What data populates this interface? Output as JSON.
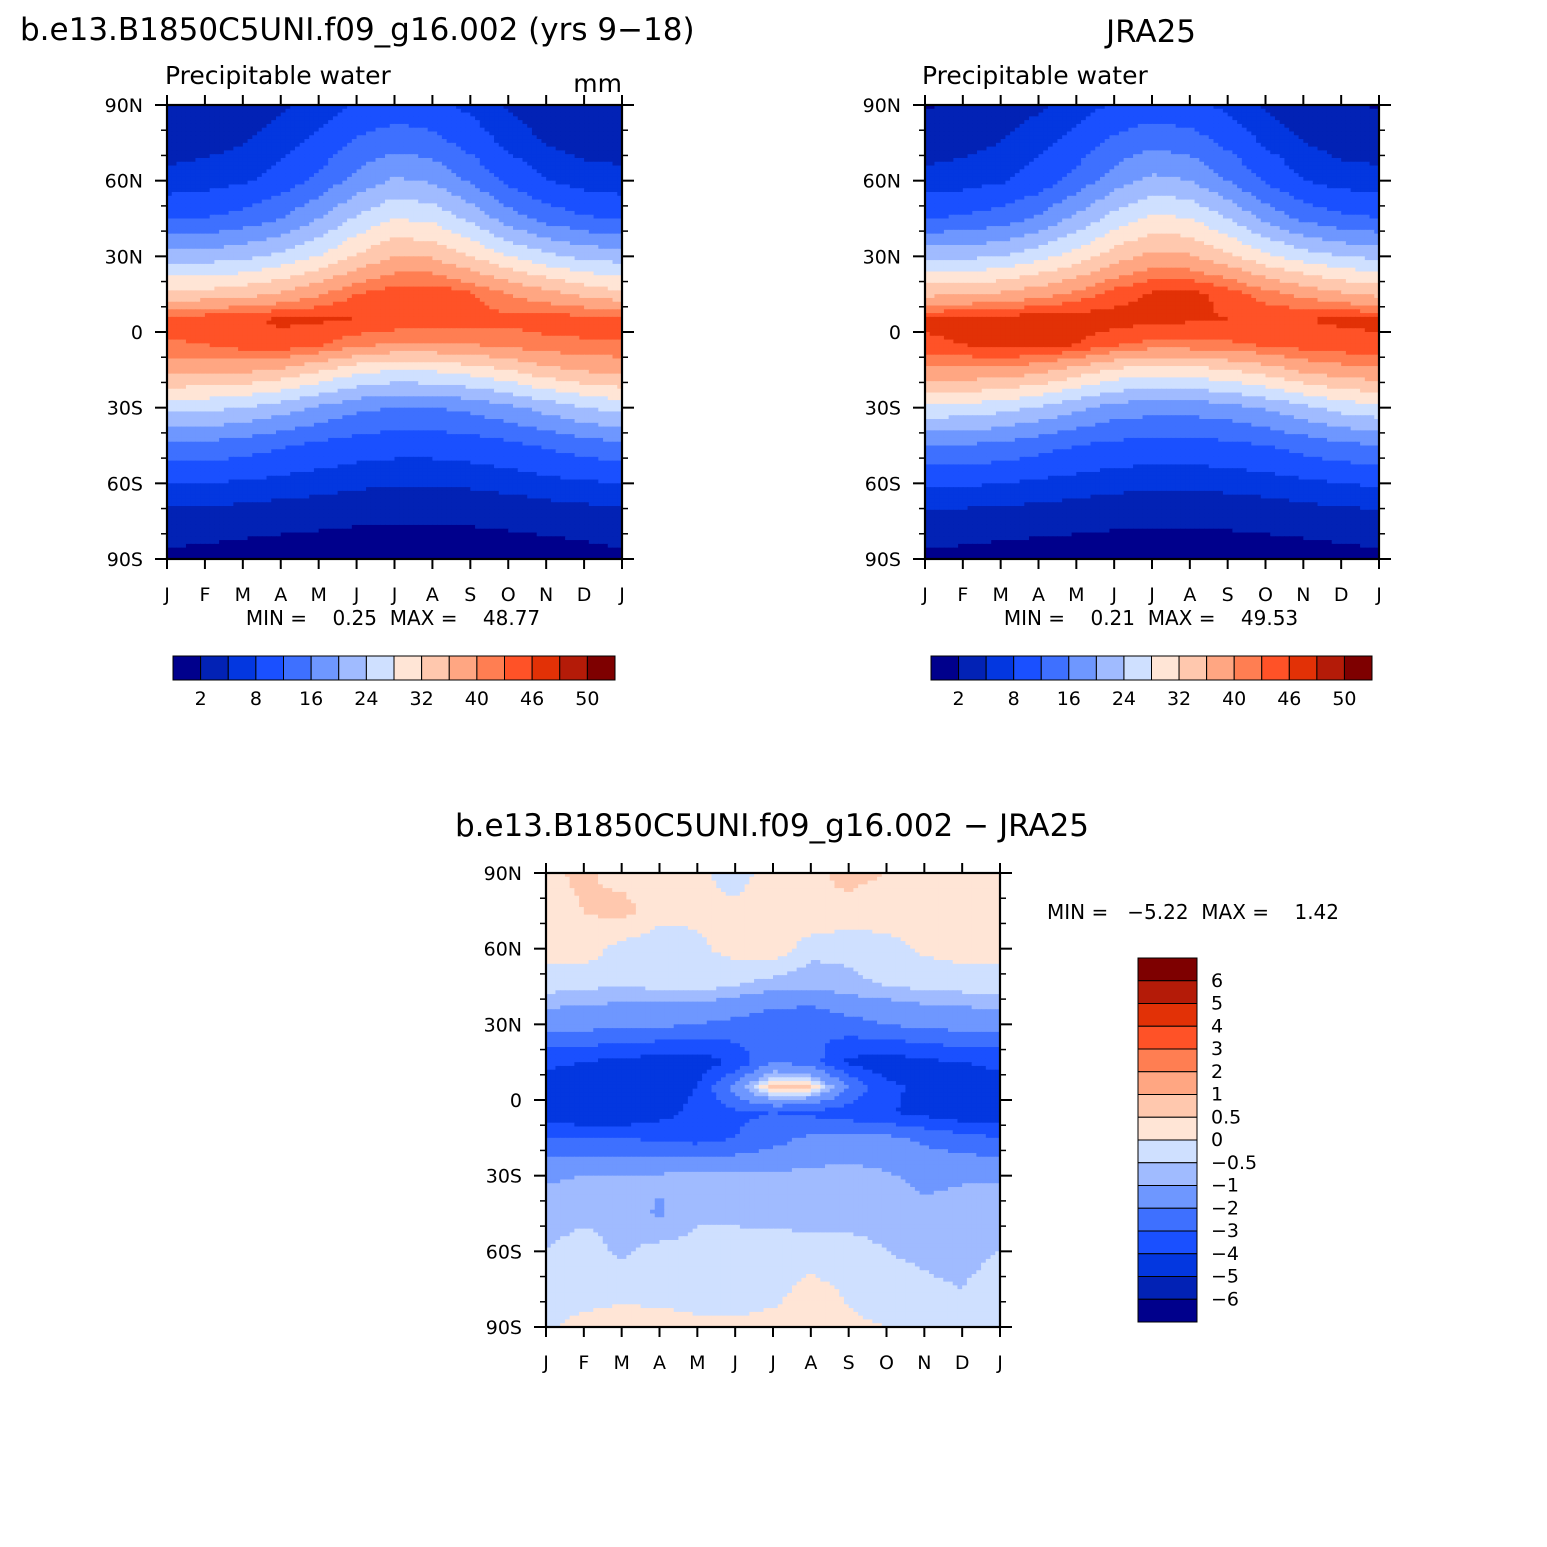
{
  "figure": {
    "panels": [
      {
        "id": "model",
        "title": "b.e13.B1850C5UNI.f09_g16.002 (yrs 9−18)",
        "left_string": "Precipitable water",
        "right_string": "mm",
        "stats": "MIN =    0.25  MAX =    48.77"
      },
      {
        "id": "obs",
        "title": "JRA25",
        "left_string": "Precipitable water",
        "right_string": "",
        "stats": "MIN =    0.21  MAX =    49.53"
      },
      {
        "id": "diff",
        "title": "b.e13.B1850C5UNI.f09_g16.002 − JRA25",
        "left_string": "",
        "right_string": "",
        "stats": "MIN =   −5.22  MAX =    1.42"
      }
    ]
  },
  "chart_data": [
    {
      "type": "heatmap",
      "title": "b.e13.B1850C5UNI.f09_g16.002 (yrs 9−18)",
      "xlabel": "",
      "ylabel": "",
      "units": "mm",
      "x_tick_labels": [
        "J",
        "F",
        "M",
        "A",
        "M",
        "J",
        "J",
        "A",
        "S",
        "O",
        "N",
        "D",
        "J"
      ],
      "y_tick_labels": [
        "90S",
        "60S",
        "30S",
        "0",
        "30N",
        "60N",
        "90N"
      ],
      "ylim": [
        -90,
        90
      ],
      "levels": [
        2,
        5,
        8,
        12,
        16,
        20,
        24,
        28,
        32,
        36,
        40,
        43,
        46,
        48,
        50
      ],
      "colorbar_labels": [
        "2",
        "8",
        "16",
        "24",
        "32",
        "40",
        "46",
        "50"
      ],
      "colors": [
        "#00008C",
        "#0222B5",
        "#0337E0",
        "#1A50FF",
        "#3E70FF",
        "#6E97FF",
        "#A0BBFF",
        "#CFE0FF",
        "#FFE5D6",
        "#FFC8AE",
        "#FFA682",
        "#FF7E52",
        "#FF5227",
        "#E23106",
        "#B41B08",
        "#7E0000"
      ],
      "grid_lat": [
        90,
        75,
        60,
        45,
        30,
        15,
        5,
        -5,
        -15,
        -30,
        -45,
        -60,
        -75,
        -90
      ],
      "values": [
        [
          2.0,
          2.2,
          3.0,
          4.5,
          6.0,
          8.5,
          9.5,
          9.0,
          7.0,
          4.5,
          3.0,
          2.3,
          2.0
        ],
        [
          3.5,
          4.0,
          4.8,
          6.5,
          9.0,
          12.5,
          14.5,
          13.5,
          10.5,
          7.0,
          4.8,
          3.8,
          3.5
        ],
        [
          6.0,
          6.5,
          7.5,
          9.5,
          13.0,
          17.5,
          20.5,
          19.5,
          15.5,
          11.0,
          8.0,
          6.5,
          6.0
        ],
        [
          11.5,
          12.0,
          13.5,
          16.0,
          20.0,
          24.5,
          28.0,
          27.0,
          23.0,
          18.0,
          14.5,
          12.5,
          11.5
        ],
        [
          22.0,
          22.0,
          23.0,
          25.0,
          28.0,
          32.5,
          36.0,
          35.5,
          32.0,
          28.0,
          25.0,
          23.0,
          22.0
        ],
        [
          33.0,
          33.5,
          34.5,
          36.5,
          39.5,
          43.0,
          45.0,
          45.5,
          43.5,
          40.0,
          37.5,
          35.0,
          33.0
        ],
        [
          44.5,
          45.0,
          45.5,
          46.5,
          46.5,
          46.0,
          45.5,
          45.0,
          44.5,
          44.0,
          44.5,
          44.5,
          44.5
        ],
        [
          42.5,
          43.0,
          44.5,
          45.0,
          43.5,
          41.0,
          39.5,
          39.5,
          40.0,
          41.0,
          42.0,
          42.5,
          42.5
        ],
        [
          37.5,
          37.5,
          37.0,
          35.5,
          32.5,
          29.5,
          28.0,
          28.5,
          30.0,
          32.0,
          35.0,
          36.5,
          37.5
        ],
        [
          25.5,
          25.0,
          24.0,
          22.0,
          19.5,
          17.0,
          16.0,
          16.0,
          17.0,
          19.0,
          21.5,
          24.0,
          25.5
        ],
        [
          15.0,
          14.8,
          14.0,
          12.5,
          11.0,
          10.0,
          9.5,
          9.5,
          10.0,
          11.0,
          12.5,
          14.0,
          15.0
        ],
        [
          8.0,
          8.0,
          7.5,
          6.8,
          6.2,
          5.6,
          5.2,
          5.2,
          5.5,
          6.0,
          6.8,
          7.5,
          8.0
        ],
        [
          3.2,
          3.0,
          2.8,
          2.6,
          2.4,
          2.2,
          2.1,
          2.1,
          2.2,
          2.4,
          2.6,
          2.9,
          3.2
        ],
        [
          1.5,
          1.3,
          1.1,
          0.9,
          0.8,
          0.7,
          0.6,
          0.6,
          0.7,
          0.8,
          1.0,
          1.2,
          1.5
        ]
      ],
      "min": 0.25,
      "max": 48.77
    },
    {
      "type": "heatmap",
      "title": "JRA25",
      "xlabel": "",
      "ylabel": "",
      "units": "mm",
      "x_tick_labels": [
        "J",
        "F",
        "M",
        "A",
        "M",
        "J",
        "J",
        "A",
        "S",
        "O",
        "N",
        "D",
        "J"
      ],
      "y_tick_labels": [
        "90S",
        "60S",
        "30S",
        "0",
        "30N",
        "60N",
        "90N"
      ],
      "ylim": [
        -90,
        90
      ],
      "levels": [
        2,
        5,
        8,
        12,
        16,
        20,
        24,
        28,
        32,
        36,
        40,
        43,
        46,
        48,
        50
      ],
      "colorbar_labels": [
        "2",
        "8",
        "16",
        "24",
        "32",
        "40",
        "46",
        "50"
      ],
      "colors": [
        "#00008C",
        "#0222B5",
        "#0337E0",
        "#1A50FF",
        "#3E70FF",
        "#6E97FF",
        "#A0BBFF",
        "#CFE0FF",
        "#FFE5D6",
        "#FFC8AE",
        "#FFA682",
        "#FF7E52",
        "#FF5227",
        "#E23106",
        "#B41B08",
        "#7E0000"
      ],
      "grid_lat": [
        90,
        75,
        60,
        45,
        30,
        15,
        5,
        -5,
        -15,
        -30,
        -45,
        -60,
        -75,
        -90
      ],
      "values": [
        [
          1.8,
          2.2,
          3.0,
          4.5,
          6.2,
          8.5,
          9.5,
          9.0,
          7.0,
          4.5,
          3.0,
          2.3,
          1.8
        ],
        [
          3.5,
          4.0,
          5.0,
          6.8,
          9.5,
          13.0,
          15.0,
          14.0,
          11.0,
          7.5,
          5.0,
          3.8,
          3.5
        ],
        [
          6.0,
          6.5,
          7.5,
          9.8,
          13.5,
          18.0,
          21.0,
          20.0,
          16.0,
          11.5,
          8.0,
          6.5,
          6.0
        ],
        [
          12.0,
          12.5,
          14.0,
          16.5,
          21.0,
          25.5,
          29.0,
          28.0,
          24.0,
          19.0,
          15.0,
          13.0,
          12.0
        ],
        [
          23.0,
          23.0,
          24.0,
          26.5,
          29.5,
          34.0,
          37.0,
          36.5,
          33.0,
          29.0,
          26.0,
          24.0,
          23.0
        ],
        [
          35.0,
          35.5,
          36.5,
          38.5,
          41.0,
          44.5,
          46.5,
          47.0,
          45.0,
          41.5,
          39.0,
          36.5,
          35.0
        ],
        [
          46.5,
          47.0,
          47.5,
          48.0,
          48.0,
          47.5,
          47.0,
          46.5,
          46.0,
          45.5,
          46.0,
          46.5,
          46.5
        ],
        [
          45.5,
          46.0,
          47.0,
          47.5,
          46.0,
          43.5,
          42.0,
          42.0,
          42.5,
          43.5,
          44.5,
          45.0,
          45.5
        ],
        [
          39.5,
          39.5,
          39.0,
          37.5,
          34.5,
          31.5,
          30.0,
          30.5,
          32.0,
          34.0,
          37.0,
          38.5,
          39.5
        ],
        [
          27.0,
          26.5,
          25.5,
          23.5,
          21.0,
          18.5,
          17.5,
          17.5,
          18.5,
          20.5,
          23.0,
          25.5,
          27.0
        ],
        [
          16.0,
          15.8,
          15.0,
          13.5,
          12.0,
          11.0,
          10.5,
          10.5,
          11.0,
          12.0,
          13.5,
          15.0,
          16.0
        ],
        [
          8.5,
          8.5,
          8.0,
          7.3,
          6.6,
          6.0,
          5.6,
          5.6,
          5.9,
          6.4,
          7.2,
          8.0,
          8.5
        ],
        [
          3.4,
          3.2,
          3.0,
          2.8,
          2.6,
          2.4,
          2.3,
          2.3,
          2.4,
          2.6,
          2.8,
          3.1,
          3.4
        ],
        [
          1.5,
          1.3,
          1.1,
          0.9,
          0.8,
          0.7,
          0.6,
          0.6,
          0.7,
          0.8,
          1.0,
          1.2,
          1.5
        ]
      ],
      "min": 0.21,
      "max": 49.53
    },
    {
      "type": "heatmap",
      "title": "b.e13.B1850C5UNI.f09_g16.002 − JRA25",
      "xlabel": "",
      "ylabel": "",
      "units": "mm",
      "x_tick_labels": [
        "J",
        "F",
        "M",
        "A",
        "M",
        "J",
        "J",
        "A",
        "S",
        "O",
        "N",
        "D",
        "J"
      ],
      "y_tick_labels": [
        "90S",
        "60S",
        "30S",
        "0",
        "30N",
        "60N",
        "90N"
      ],
      "ylim": [
        -90,
        90
      ],
      "levels": [
        -6,
        -5,
        -4,
        -3,
        -2,
        -1,
        -0.5,
        0,
        0.5,
        1,
        2,
        3,
        4,
        5,
        6
      ],
      "colorbar_labels": [
        "6",
        "5",
        "4",
        "3",
        "2",
        "1",
        "0.5",
        "0",
        "−0.5",
        "−1",
        "−2",
        "−3",
        "−4",
        "−5",
        "−6"
      ],
      "colors": [
        "#00008C",
        "#0222B5",
        "#0337E0",
        "#1A50FF",
        "#3E70FF",
        "#6E97FF",
        "#A0BBFF",
        "#CFE0FF",
        "#FFE5D6",
        "#FFC8AE",
        "#FFA682",
        "#FF7E52",
        "#FF5227",
        "#E23106",
        "#B41B08",
        "#7E0000"
      ],
      "grid_lat": [
        90,
        75,
        60,
        45,
        30,
        15,
        5,
        -5,
        -15,
        -30,
        -45,
        -60,
        -75,
        -90
      ],
      "values": [
        [
          0.4,
          0.6,
          0.3,
          0.2,
          0.1,
          -0.2,
          0.2,
          0.4,
          0.6,
          0.5,
          0.3,
          0.2,
          0.4
        ],
        [
          0.3,
          0.5,
          0.7,
          0.2,
          0.1,
          0.1,
          0.3,
          0.5,
          0.4,
          0.3,
          0.2,
          0.2,
          0.3
        ],
        [
          0.2,
          0.3,
          -0.2,
          -0.3,
          -0.1,
          0.2,
          0.4,
          -0.3,
          -0.4,
          -0.2,
          0.1,
          0.2,
          0.2
        ],
        [
          -0.3,
          -0.4,
          -0.5,
          -0.4,
          -0.3,
          -0.5,
          -0.8,
          -0.9,
          -0.6,
          -0.5,
          -0.4,
          -0.3,
          -0.3
        ],
        [
          -1.5,
          -1.6,
          -1.7,
          -1.8,
          -2.0,
          -2.3,
          -2.8,
          -3.0,
          -2.4,
          -2.0,
          -1.7,
          -1.6,
          -1.5
        ],
        [
          -3.8,
          -4.0,
          -4.3,
          -4.5,
          -4.6,
          -3.8,
          -2.0,
          -2.5,
          -4.2,
          -4.6,
          -4.2,
          -4.0,
          -3.8
        ],
        [
          -4.4,
          -4.7,
          -4.8,
          -4.5,
          -4.0,
          -1.5,
          0.8,
          0.6,
          -2.0,
          -3.8,
          -4.2,
          -4.6,
          -4.4
        ],
        [
          -4.6,
          -4.9,
          -5.0,
          -4.4,
          -3.7,
          -3.2,
          -3.0,
          -3.2,
          -3.6,
          -3.9,
          -4.3,
          -4.8,
          -4.6
        ],
        [
          -3.0,
          -3.1,
          -3.0,
          -3.2,
          -3.4,
          -3.0,
          -2.4,
          -1.8,
          -1.6,
          -1.8,
          -2.2,
          -2.6,
          -3.0
        ],
        [
          -1.1,
          -1.0,
          -0.9,
          -0.9,
          -0.8,
          -0.8,
          -0.8,
          -0.8,
          -0.7,
          -0.9,
          -1.2,
          -1.1,
          -1.1
        ],
        [
          -0.7,
          -0.6,
          -0.6,
          -1.1,
          -0.6,
          -0.6,
          -0.7,
          -0.7,
          -0.6,
          -0.6,
          -0.8,
          -0.7,
          -0.7
        ],
        [
          -0.5,
          -0.3,
          -0.6,
          -0.3,
          -0.3,
          -0.3,
          -0.2,
          -0.3,
          -0.4,
          -0.5,
          -0.6,
          -0.7,
          -0.5
        ],
        [
          -0.2,
          -0.3,
          -0.2,
          -0.2,
          -0.2,
          -0.3,
          -0.2,
          0.2,
          -0.1,
          -0.3,
          -0.4,
          -0.5,
          -0.2
        ],
        [
          -0.1,
          0.2,
          0.3,
          0.2,
          0.1,
          0.1,
          0.2,
          0.3,
          0.1,
          0.0,
          -0.1,
          -0.2,
          -0.1
        ]
      ],
      "min": -5.22,
      "max": 1.42
    }
  ]
}
